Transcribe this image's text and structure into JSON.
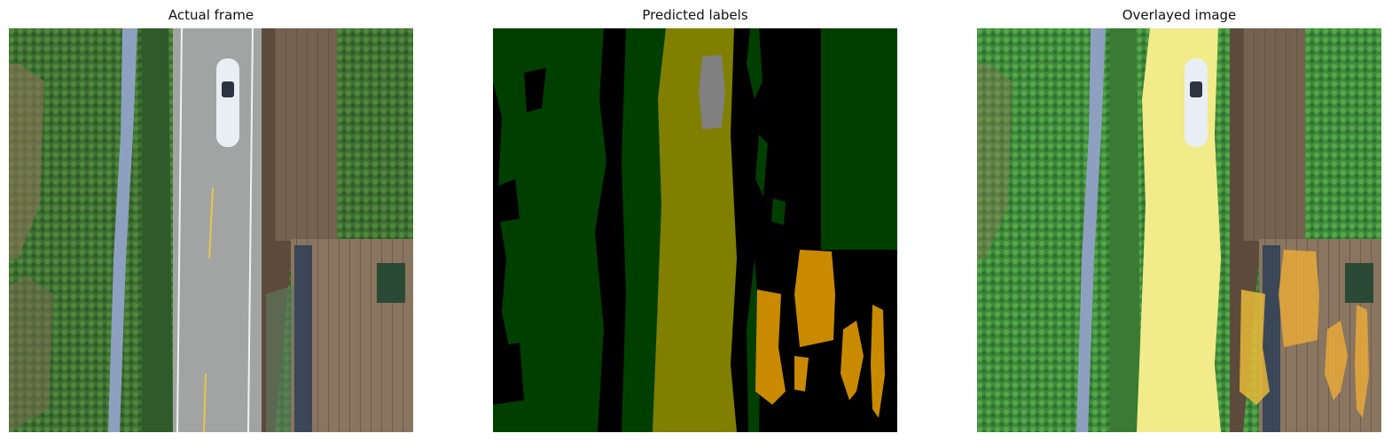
{
  "panels": [
    {
      "title": "Actual frame"
    },
    {
      "title": "Predicted labels"
    },
    {
      "title": "Overlayed image"
    }
  ],
  "colors": {
    "background_label": "#000000",
    "vegetation_label": "#003f00",
    "road_label": "#807f00",
    "car_label": "#808080",
    "field_label": "#c98a00"
  }
}
